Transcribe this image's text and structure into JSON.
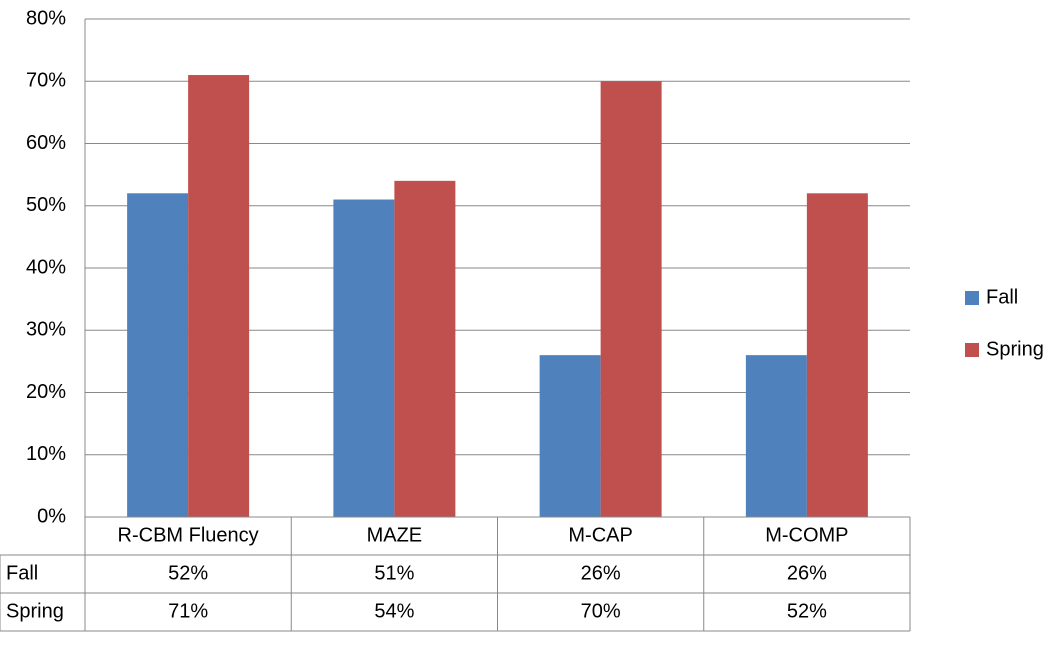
{
  "chart_data": {
    "type": "bar",
    "categories": [
      "R-CBM Fluency",
      "MAZE",
      "M-CAP",
      "M-COMP"
    ],
    "series": [
      {
        "name": "Fall",
        "color": "#4f81bd",
        "values": [
          52,
          51,
          26,
          26
        ],
        "value_labels": [
          "52%",
          "51%",
          "26%",
          "26%"
        ]
      },
      {
        "name": "Spring",
        "color": "#c0504d",
        "values": [
          71,
          54,
          70,
          52
        ],
        "value_labels": [
          "71%",
          "54%",
          "70%",
          "52%"
        ]
      }
    ],
    "ylim": [
      0,
      80
    ],
    "yticks": [
      {
        "value": 0,
        "label": "0%"
      },
      {
        "value": 10,
        "label": "10%"
      },
      {
        "value": 20,
        "label": "20%"
      },
      {
        "value": 30,
        "label": "30%"
      },
      {
        "value": 40,
        "label": "40%"
      },
      {
        "value": 50,
        "label": "50%"
      },
      {
        "value": 60,
        "label": "60%"
      },
      {
        "value": 70,
        "label": "70%"
      },
      {
        "value": 80,
        "label": "80%"
      }
    ],
    "grid": true,
    "legend": "right"
  }
}
